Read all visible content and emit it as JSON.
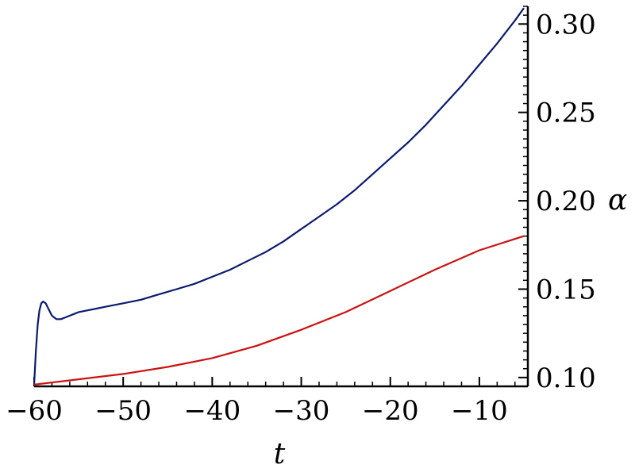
{
  "chart_data": {
    "type": "line",
    "title": "",
    "xlabel": "t",
    "ylabel": "α",
    "xlim": [
      -60,
      -5
    ],
    "ylim": [
      0.095,
      0.31
    ],
    "x_ticks": [
      -60,
      -50,
      -40,
      -30,
      -20,
      -10
    ],
    "x_tick_labels": [
      "−60",
      "−50",
      "−40",
      "−30",
      "−20",
      "−10"
    ],
    "y_ticks": [
      0.1,
      0.15,
      0.2,
      0.25,
      0.3
    ],
    "y_tick_labels": [
      "0.10",
      "0.15",
      "0.20",
      "0.25",
      "0.30"
    ],
    "y_axis_side": "right",
    "grid": false,
    "legend": "none",
    "series": [
      {
        "color": "#0b1a6e",
        "x": [
          -60,
          -59.8,
          -59.6,
          -59.4,
          -59.2,
          -59,
          -58.7,
          -58.4,
          -58,
          -57.5,
          -57,
          -56.5,
          -56,
          -55.5,
          -55,
          -54,
          -53,
          -52,
          -50,
          -48,
          -46,
          -44,
          -42,
          -40,
          -38,
          -36,
          -34,
          -32,
          -30,
          -28,
          -26,
          -24,
          -22,
          -20,
          -18,
          -16,
          -14,
          -12,
          -10,
          -8,
          -6,
          -5
        ],
        "y": [
          0.096,
          0.115,
          0.13,
          0.138,
          0.142,
          0.143,
          0.142,
          0.139,
          0.135,
          0.133,
          0.133,
          0.134,
          0.135,
          0.136,
          0.137,
          0.138,
          0.139,
          0.14,
          0.142,
          0.144,
          0.147,
          0.15,
          0.153,
          0.157,
          0.161,
          0.166,
          0.171,
          0.177,
          0.184,
          0.191,
          0.198,
          0.206,
          0.215,
          0.224,
          0.233,
          0.243,
          0.254,
          0.265,
          0.277,
          0.289,
          0.302,
          0.309
        ]
      },
      {
        "color": "#cc1111",
        "x": [
          -60,
          -55,
          -50,
          -45,
          -40,
          -35,
          -30,
          -25,
          -20,
          -15,
          -10,
          -5
        ],
        "y": [
          0.096,
          0.099,
          0.102,
          0.106,
          0.111,
          0.118,
          0.127,
          0.137,
          0.149,
          0.161,
          0.172,
          0.18
        ]
      }
    ]
  }
}
